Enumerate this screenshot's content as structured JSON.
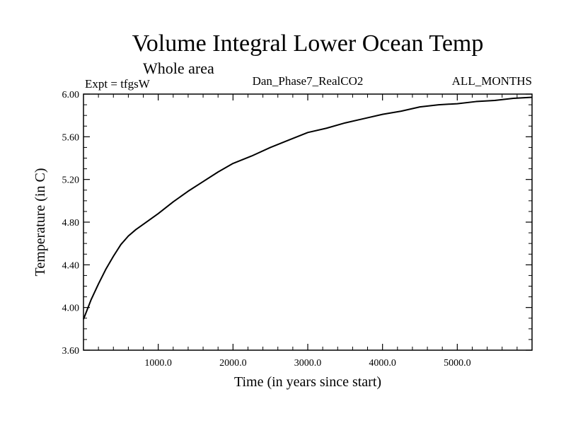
{
  "chart_data": {
    "type": "line",
    "title": "Volume Integral Lower Ocean Temp",
    "subtitle": "Whole area",
    "experiment_label": "Expt = tfgsW",
    "run_label": "Dan_Phase7_RealCO2",
    "period_label": "ALL_MONTHS",
    "xlabel": "Time (in years since start)",
    "ylabel": "Temperature (in C)",
    "xlim": [
      0,
      6000
    ],
    "ylim": [
      3.6,
      6.0
    ],
    "x_ticks": [
      1000,
      2000,
      3000,
      4000,
      5000
    ],
    "x_tick_labels": [
      "1000.0",
      "2000.0",
      "3000.0",
      "4000.0",
      "5000.0"
    ],
    "y_ticks": [
      3.6,
      4.0,
      4.4,
      4.8,
      5.2,
      5.6,
      6.0
    ],
    "y_tick_labels": [
      "3.60",
      "4.00",
      "4.40",
      "4.80",
      "5.20",
      "5.60",
      "6.00"
    ],
    "grid": false,
    "line_color": "#000000",
    "series": [
      {
        "name": "tfgsW",
        "x": [
          0,
          100,
          200,
          300,
          400,
          500,
          600,
          700,
          800,
          1000,
          1200,
          1400,
          1600,
          1800,
          2000,
          2250,
          2500,
          2750,
          3000,
          3250,
          3500,
          3750,
          4000,
          4250,
          4500,
          4750,
          5000,
          5250,
          5500,
          5750,
          6000
        ],
        "values": [
          3.89,
          4.07,
          4.22,
          4.36,
          4.48,
          4.59,
          4.67,
          4.73,
          4.78,
          4.88,
          4.99,
          5.09,
          5.18,
          5.27,
          5.35,
          5.42,
          5.5,
          5.57,
          5.64,
          5.68,
          5.73,
          5.77,
          5.81,
          5.84,
          5.88,
          5.9,
          5.91,
          5.93,
          5.94,
          5.96,
          5.97
        ]
      }
    ]
  }
}
